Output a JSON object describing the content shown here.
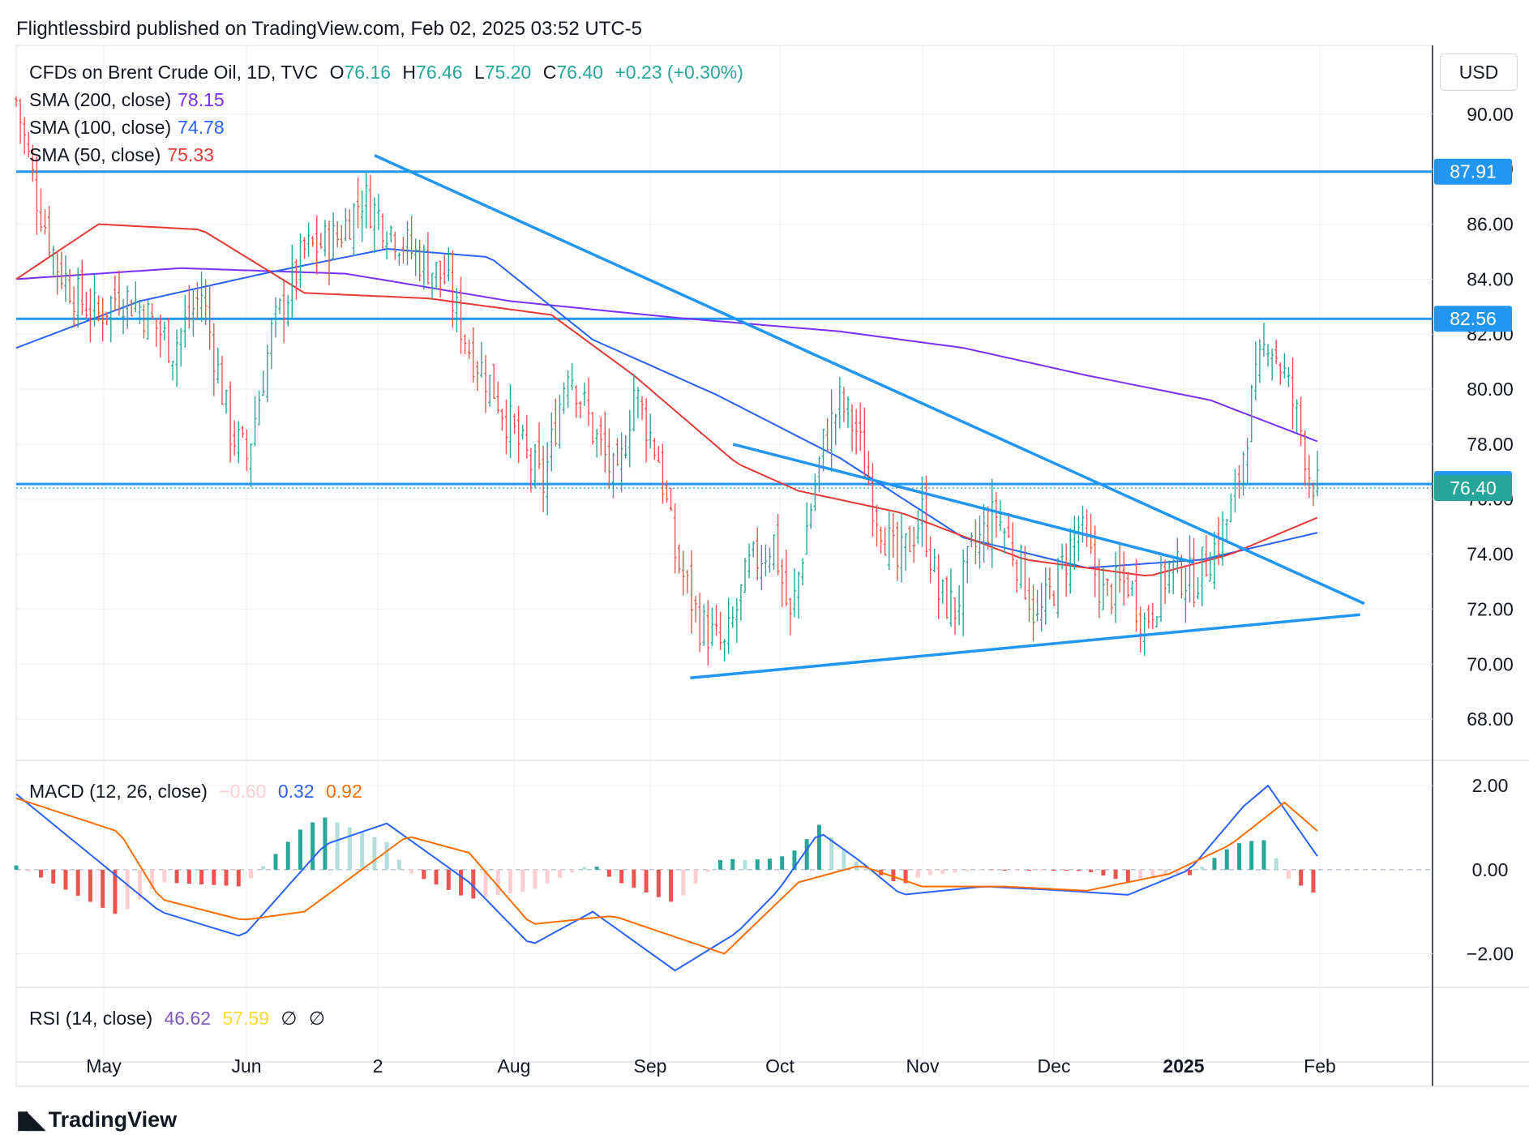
{
  "header": {
    "publisher_line": "Flightlessbird published on TradingView.com, Feb 02, 2025 03:52 UTC-5"
  },
  "footer": {
    "brand": "TradingView",
    "logo_icon": "tradingview-logo-icon"
  },
  "currency_button": "USD",
  "legend": {
    "symbol": "CFDs on Brent Crude Oil, 1D, TVC",
    "open_label": "O",
    "open": "76.16",
    "high_label": "H",
    "high": "76.46",
    "low_label": "L",
    "low": "75.20",
    "close_label": "C",
    "close": "76.40",
    "change": "+0.23 (+0.30%)",
    "sma200_label": "SMA (200, close)",
    "sma200": "78.15",
    "sma100_label": "SMA (100, close)",
    "sma100": "74.78",
    "sma50_label": "SMA (50, close)",
    "sma50": "75.33",
    "macd_label": "MACD (12, 26, close)",
    "macd_hist": "−0.60",
    "macd_line": "0.32",
    "macd_signal": "0.92",
    "rsi_label": "RSI (14, close)",
    "rsi": "46.62",
    "rsi_ma": "57.59",
    "rsi_extra1": "∅",
    "rsi_extra2": "∅"
  },
  "colors": {
    "up": "#26a69a",
    "down": "#ef5350",
    "up_light": "#b2dfdb",
    "down_light": "#ffcdd2",
    "sma200": "#7b2ff7",
    "sma100": "#2962ff",
    "sma50": "#e53935",
    "trendline": "#2196f3",
    "macd_line": "#2962ff",
    "macd_signal": "#ff6d00",
    "rsi": "#7e57c2",
    "rsi_ma": "#fdd835"
  },
  "chart_data": {
    "type": "candlestick",
    "x_ticks": [
      "May",
      "Jun",
      "2",
      "Aug",
      "Sep",
      "Oct",
      "Nov",
      "Dec",
      "2025",
      "Feb"
    ],
    "y_ticks": [
      "90.00",
      "88.00",
      "86.00",
      "84.00",
      "82.00",
      "80.00",
      "78.00",
      "76.00",
      "74.00",
      "72.00",
      "70.00",
      "68.00"
    ],
    "y_range": [
      66.5,
      92.5
    ],
    "price_labels": [
      {
        "value": 87.91,
        "text": "87.91",
        "color": "#2196f3"
      },
      {
        "value": 82.56,
        "text": "82.56",
        "color": "#2196f3"
      },
      {
        "value": 76.55,
        "text": "76.55",
        "color": "#2196f3"
      },
      {
        "value": 76.4,
        "text": "76.40",
        "color": "#26a69a"
      }
    ],
    "horizontal_levels": [
      87.91,
      82.56,
      76.55
    ],
    "last_close_dotted": 76.4,
    "trendlines": [
      {
        "from": [
          "2024-06-28",
          88.5
        ],
        "to": [
          "2024-11-29",
          76.2
        ],
        "extend_to": [
          "2025-02-15",
          72.2
        ]
      },
      {
        "from": [
          "2024-09-20",
          78.0
        ],
        "to": [
          "2025-01-06",
          73.7
        ]
      },
      {
        "from": [
          "2024-09-10",
          69.5
        ],
        "to": [
          "2025-02-14",
          71.8
        ]
      }
    ],
    "sma200": [
      [
        0,
        84.0
      ],
      [
        40,
        84.4
      ],
      [
        80,
        84.2
      ],
      [
        120,
        83.2
      ],
      [
        160,
        82.6
      ],
      [
        200,
        82.1
      ],
      [
        230,
        81.5
      ],
      [
        260,
        80.5
      ],
      [
        290,
        79.6
      ],
      [
        316,
        78.1
      ]
    ],
    "sma100": [
      [
        0,
        81.5
      ],
      [
        30,
        83.2
      ],
      [
        60,
        84.2
      ],
      [
        90,
        85.1
      ],
      [
        115,
        84.8
      ],
      [
        140,
        81.8
      ],
      [
        170,
        79.8
      ],
      [
        200,
        77.5
      ],
      [
        230,
        74.6
      ],
      [
        260,
        73.5
      ],
      [
        288,
        73.8
      ],
      [
        316,
        74.78
      ]
    ],
    "sma50": [
      [
        0,
        84.0
      ],
      [
        20,
        86.0
      ],
      [
        45,
        85.8
      ],
      [
        70,
        83.5
      ],
      [
        100,
        83.3
      ],
      [
        130,
        82.7
      ],
      [
        150,
        80.5
      ],
      [
        175,
        77.3
      ],
      [
        190,
        76.3
      ],
      [
        215,
        75.5
      ],
      [
        245,
        73.8
      ],
      [
        275,
        73.2
      ],
      [
        295,
        74.0
      ],
      [
        316,
        75.33
      ]
    ],
    "closes": [
      [
        0,
        90.5
      ],
      [
        5,
        87.0
      ],
      [
        10,
        84.5
      ],
      [
        15,
        83.3
      ],
      [
        20,
        82.7
      ],
      [
        25,
        83.5
      ],
      [
        30,
        83.0
      ],
      [
        38,
        81.5
      ],
      [
        45,
        83.5
      ],
      [
        52,
        78.5
      ],
      [
        56,
        77.5
      ],
      [
        62,
        82.0
      ],
      [
        70,
        85.0
      ],
      [
        78,
        85.5
      ],
      [
        84,
        87.0
      ],
      [
        90,
        86.0
      ],
      [
        96,
        85.0
      ],
      [
        104,
        84.0
      ],
      [
        110,
        81.5
      ],
      [
        116,
        80.0
      ],
      [
        122,
        78.0
      ],
      [
        128,
        76.5
      ],
      [
        134,
        81.0
      ],
      [
        140,
        78.5
      ],
      [
        146,
        76.5
      ],
      [
        150,
        80.0
      ],
      [
        156,
        77.5
      ],
      [
        160,
        74.0
      ],
      [
        166,
        71.5
      ],
      [
        172,
        70.5
      ],
      [
        178,
        73.5
      ],
      [
        184,
        74.5
      ],
      [
        188,
        71.5
      ],
      [
        192,
        75.0
      ],
      [
        196,
        78.0
      ],
      [
        200,
        79.5
      ],
      [
        204,
        78.5
      ],
      [
        208,
        76.0
      ],
      [
        214,
        73.5
      ],
      [
        220,
        75.5
      ],
      [
        224,
        72.5
      ],
      [
        228,
        72.0
      ],
      [
        232,
        74.0
      ],
      [
        238,
        75.5
      ],
      [
        244,
        73.5
      ],
      [
        248,
        71.5
      ],
      [
        254,
        73.5
      ],
      [
        258,
        75.0
      ],
      [
        264,
        72.5
      ],
      [
        270,
        73.0
      ],
      [
        274,
        71.5
      ],
      [
        280,
        73.5
      ],
      [
        286,
        73.0
      ],
      [
        292,
        74.5
      ],
      [
        296,
        76.0
      ],
      [
        300,
        79.5
      ],
      [
        304,
        82.0
      ],
      [
        308,
        80.5
      ],
      [
        312,
        78.5
      ],
      [
        314,
        77.0
      ],
      [
        316,
        76.4
      ]
    ],
    "macd": [
      [
        0,
        1.8
      ],
      [
        20,
        0.2
      ],
      [
        35,
        -1.0
      ],
      [
        55,
        -1.6
      ],
      [
        75,
        0.6
      ],
      [
        90,
        1.1
      ],
      [
        110,
        -0.3
      ],
      [
        125,
        -1.8
      ],
      [
        140,
        -1.0
      ],
      [
        160,
        -2.4
      ],
      [
        175,
        -1.5
      ],
      [
        185,
        -0.5
      ],
      [
        195,
        0.9
      ],
      [
        205,
        0.2
      ],
      [
        215,
        -0.6
      ],
      [
        235,
        -0.4
      ],
      [
        255,
        -0.5
      ],
      [
        270,
        -0.6
      ],
      [
        285,
        0.0
      ],
      [
        298,
        1.5
      ],
      [
        304,
        2.0
      ],
      [
        316,
        0.32
      ]
    ],
    "macd_signal": [
      [
        0,
        1.7
      ],
      [
        25,
        0.9
      ],
      [
        35,
        -0.7
      ],
      [
        55,
        -1.2
      ],
      [
        70,
        -1.0
      ],
      [
        95,
        0.8
      ],
      [
        110,
        0.4
      ],
      [
        125,
        -1.3
      ],
      [
        145,
        -1.1
      ],
      [
        172,
        -2.0
      ],
      [
        190,
        -0.3
      ],
      [
        205,
        0.1
      ],
      [
        220,
        -0.4
      ],
      [
        240,
        -0.4
      ],
      [
        260,
        -0.5
      ],
      [
        280,
        -0.1
      ],
      [
        295,
        0.6
      ],
      [
        308,
        1.6
      ],
      [
        316,
        0.92
      ]
    ],
    "macd_y_ticks": [
      "2.00",
      "0.00",
      "−2.00"
    ],
    "macd_y_range": [
      -2.8,
      2.6
    ]
  }
}
